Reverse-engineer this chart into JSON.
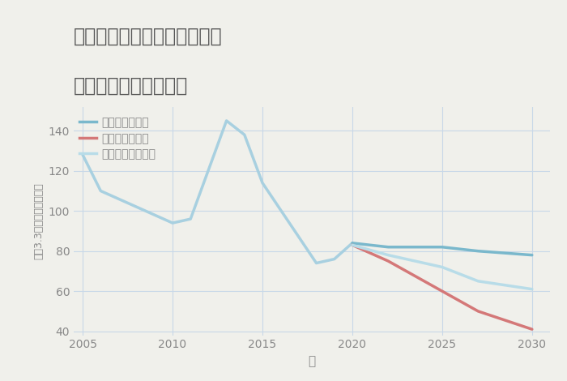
{
  "title_line1": "福岡県築上郡上毛町土佐井の",
  "title_line2": "中古戸建ての価格推移",
  "xlabel": "年",
  "ylabel": "坪（3.3㎡）単価（万円）",
  "background_color": "#f0f0eb",
  "plot_background": "#f0f0eb",
  "grid_color": "#c8d8e8",
  "years_historical": [
    2005,
    2006,
    2010,
    2011,
    2013,
    2014,
    2015,
    2018,
    2019,
    2020
  ],
  "values_historical": [
    128,
    110,
    94,
    96,
    145,
    138,
    114,
    74,
    76,
    84
  ],
  "years_good": [
    2020,
    2022,
    2025,
    2027,
    2030
  ],
  "values_good": [
    84,
    82,
    82,
    80,
    78
  ],
  "years_bad": [
    2020,
    2022,
    2025,
    2027,
    2030
  ],
  "values_bad": [
    83,
    75,
    60,
    50,
    41
  ],
  "years_normal": [
    2020,
    2022,
    2025,
    2027,
    2030
  ],
  "values_normal": [
    83,
    78,
    72,
    65,
    61
  ],
  "color_historical": "#a8d0e0",
  "color_good": "#7ab8cc",
  "color_bad": "#d47878",
  "color_normal": "#b8dce8",
  "legend_labels": [
    "グッドシナリオ",
    "バッドシナリオ",
    "ノーマルシナリオ"
  ],
  "legend_colors": [
    "#7ab8cc",
    "#d47878",
    "#b8dce8"
  ],
  "ylim": [
    38,
    152
  ],
  "xlim": [
    2004.5,
    2031
  ],
  "yticks": [
    40,
    60,
    80,
    100,
    120,
    140
  ],
  "xticks": [
    2005,
    2010,
    2015,
    2020,
    2025,
    2030
  ],
  "title_color": "#555555",
  "tick_color": "#888888",
  "title_fontsize": 17,
  "legend_fontsize": 10
}
